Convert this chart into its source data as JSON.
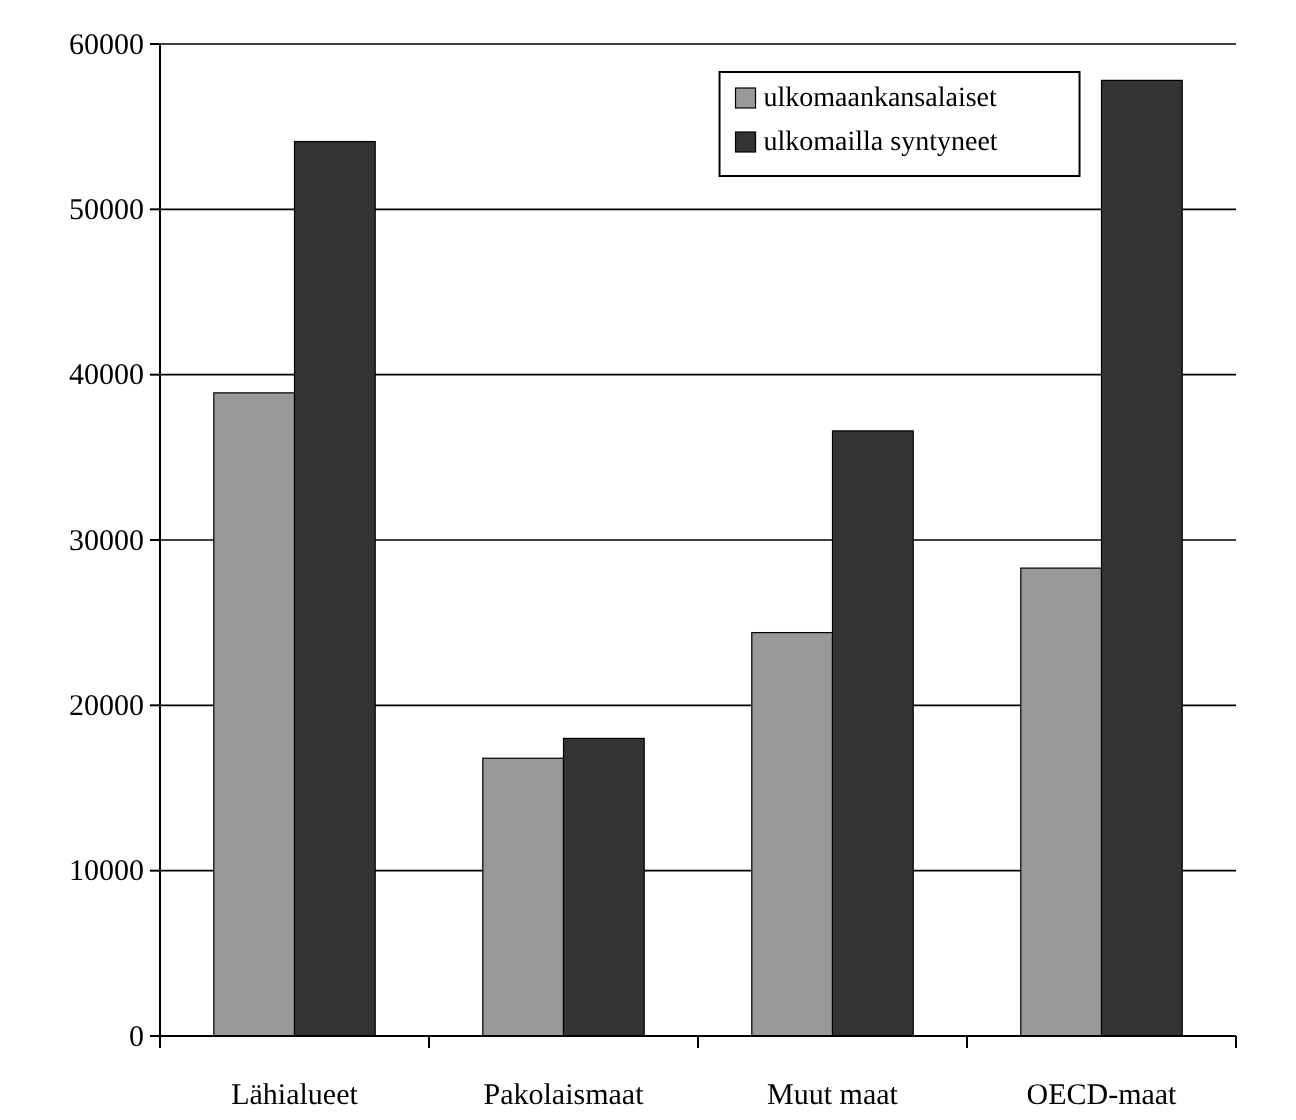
{
  "chart_data": {
    "type": "bar",
    "categories": [
      "Lähialueet",
      "Pakolaismaat",
      "Muut maat",
      "OECD-maat"
    ],
    "series": [
      {
        "name": "ulkomaankansalaiset",
        "color": "#999999",
        "values": [
          38900,
          16800,
          24400,
          28300
        ]
      },
      {
        "name": "ulkomailla syntyneet",
        "color": "#333333",
        "values": [
          54100,
          18000,
          36600,
          57800
        ]
      }
    ],
    "ylim": [
      0,
      60000
    ],
    "yticks": [
      0,
      10000,
      20000,
      30000,
      40000,
      50000,
      60000
    ],
    "grid": "y",
    "legend": "top right"
  }
}
